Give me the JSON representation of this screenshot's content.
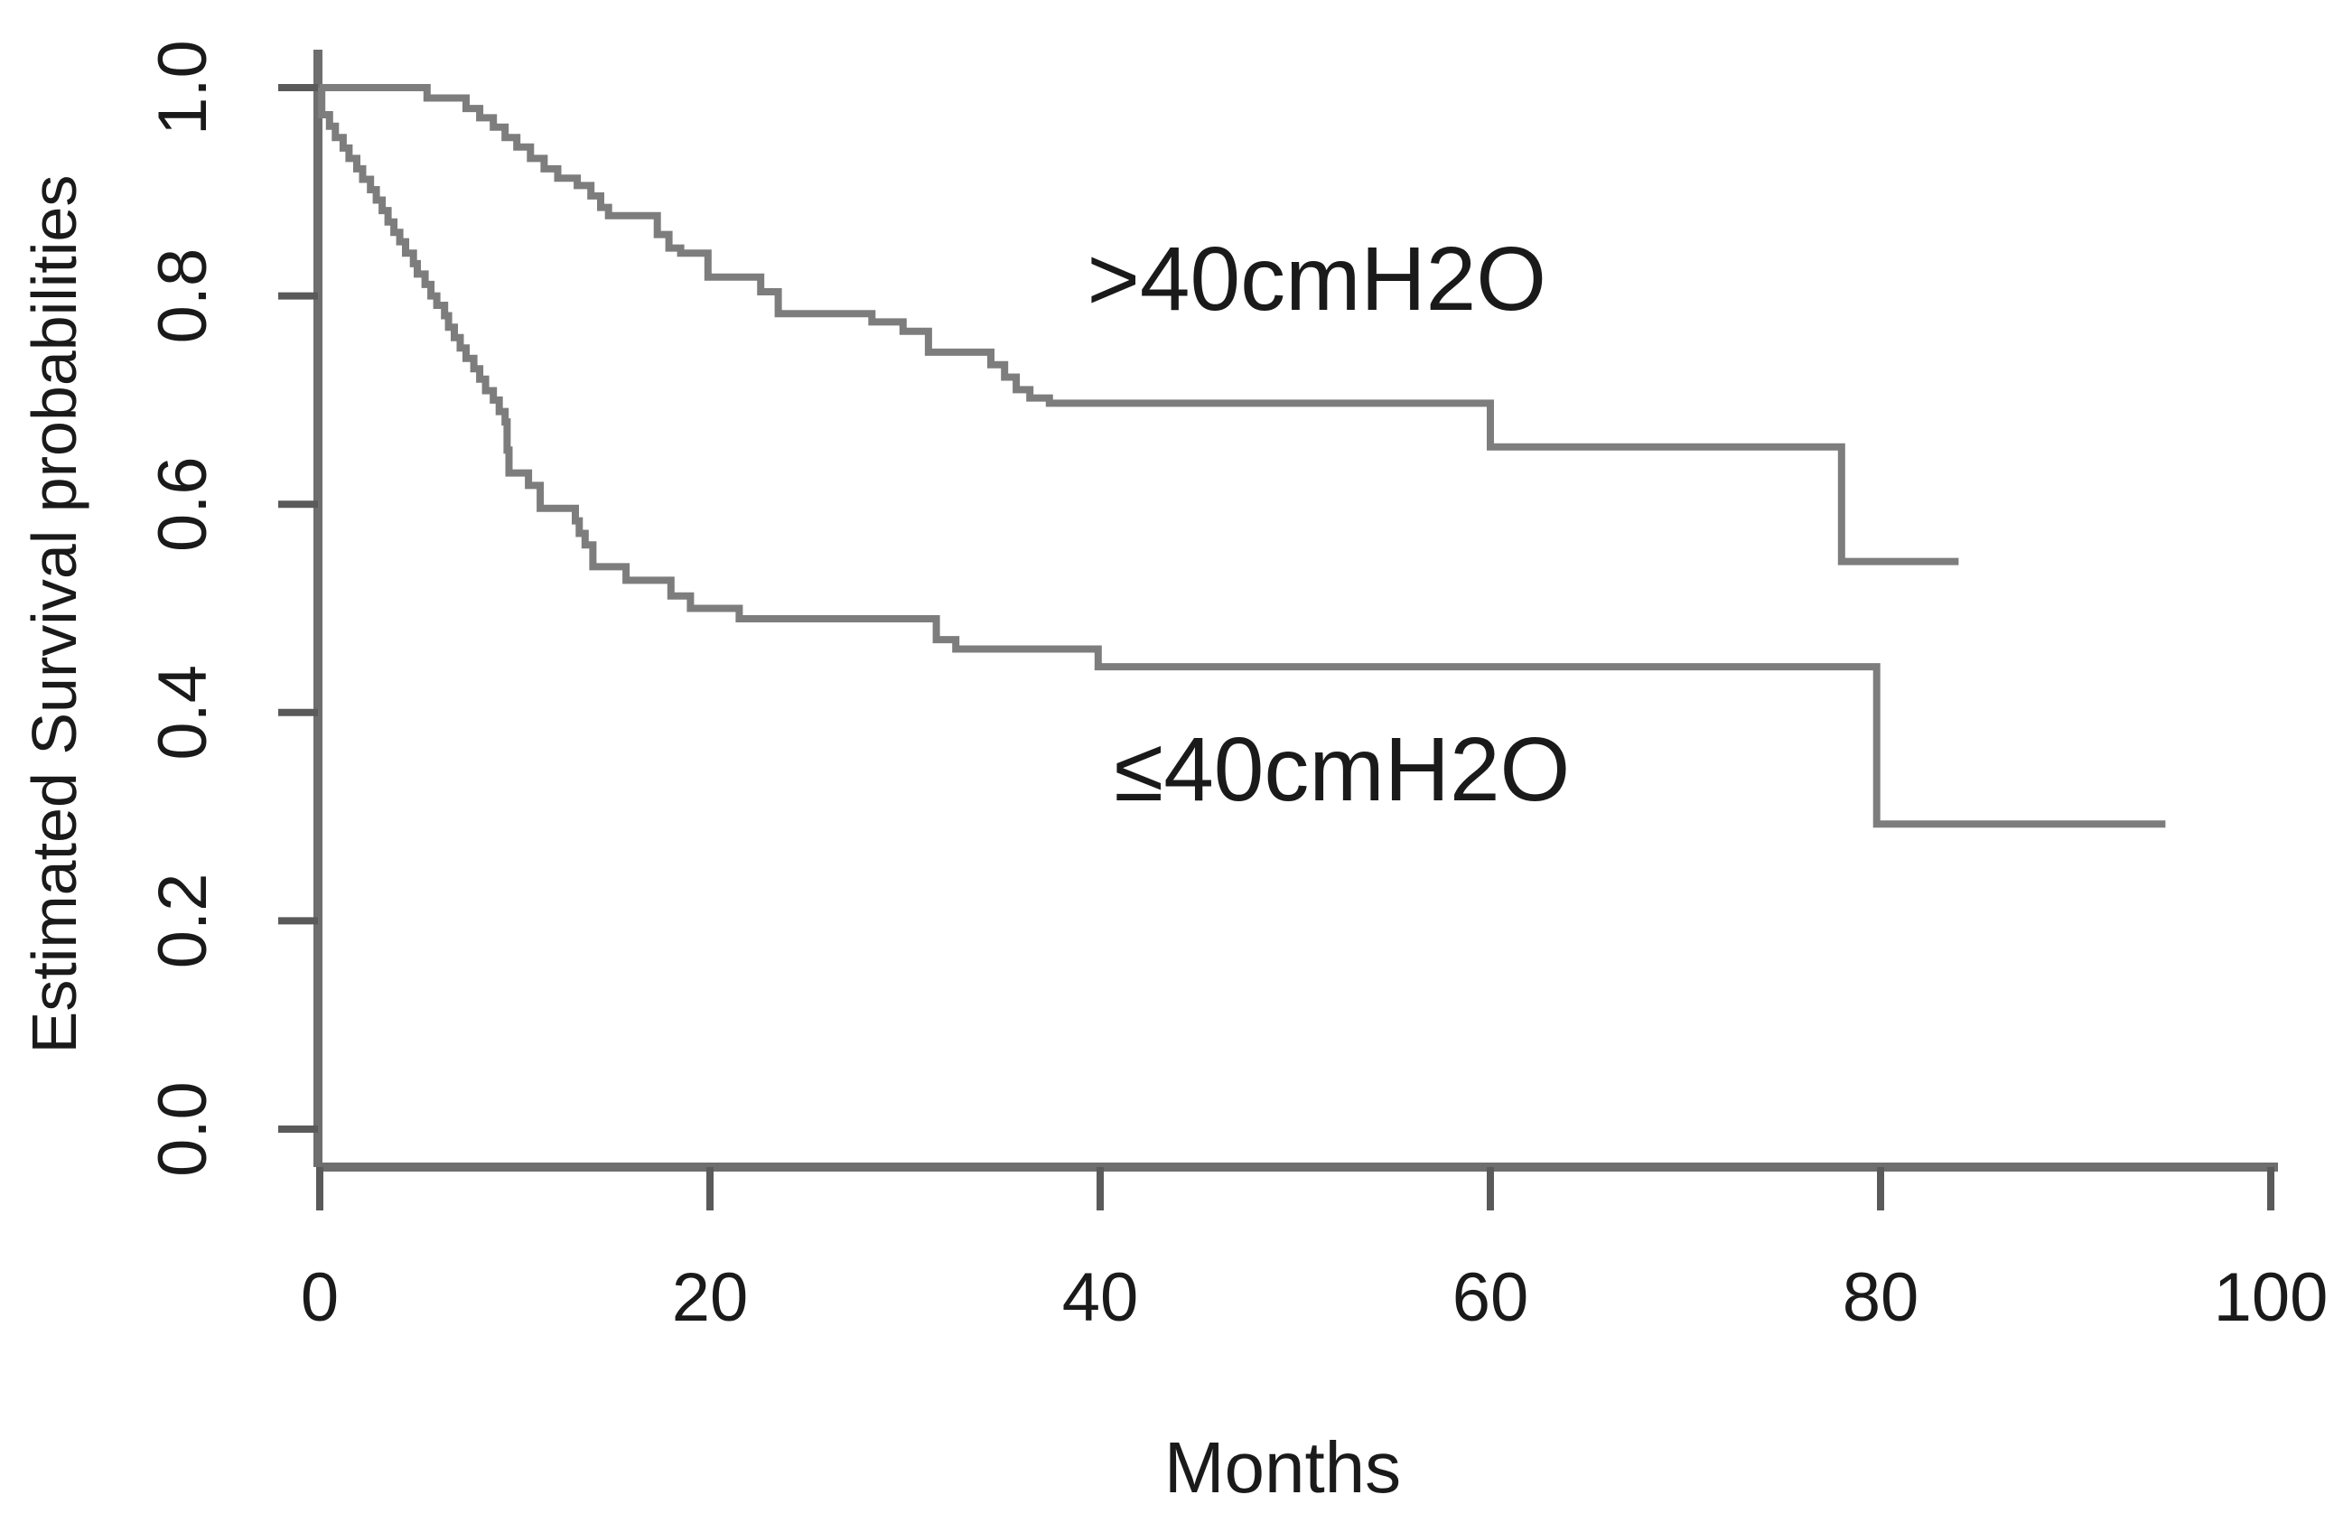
{
  "page": {
    "background": "#ffffff",
    "description": "Kaplan-Meier estimated survival probability curves comparing two groups by pressure threshold"
  },
  "chart_data": {
    "type": "line",
    "subtype": "kaplan-meier-step",
    "title": "",
    "xlabel": "Months",
    "ylabel": "Estimated Survival probabilities",
    "xlim": [
      0,
      100
    ],
    "ylim": [
      0.0,
      1.0
    ],
    "x_ticks": [
      0,
      20,
      40,
      60,
      80,
      100
    ],
    "y_ticks": [
      0.0,
      0.2,
      0.4,
      0.6,
      0.8,
      1.0
    ],
    "y_tick_labels": [
      "0.0",
      "0.2",
      "0.4",
      "0.6",
      "0.8",
      "1.0"
    ],
    "grid": false,
    "legend": "inline-annotations",
    "colors": {
      "curve": "#7d7d7d",
      "axis": "#6e6e6e",
      "tick": "#5a5a5a",
      "text": "#1a1a1a"
    },
    "series": [
      {
        "name": ">40cmH2O",
        "label": ">40cmH2O",
        "label_at": {
          "x": 51.1,
          "y": 0.817
        },
        "end_month": 84,
        "steps": [
          [
            0,
            1.0
          ],
          [
            5.5,
            0.99
          ],
          [
            7.5,
            0.98
          ],
          [
            8.2,
            0.971
          ],
          [
            8.9,
            0.962
          ],
          [
            9.5,
            0.952
          ],
          [
            10.1,
            0.943
          ],
          [
            10.8,
            0.932
          ],
          [
            11.5,
            0.922
          ],
          [
            12.2,
            0.913
          ],
          [
            13.2,
            0.906
          ],
          [
            13.9,
            0.896
          ],
          [
            14.4,
            0.885
          ],
          [
            14.8,
            0.877
          ],
          [
            17.3,
            0.859
          ],
          [
            17.9,
            0.846
          ],
          [
            18.5,
            0.841
          ],
          [
            19.9,
            0.818
          ],
          [
            22.6,
            0.804
          ],
          [
            23.5,
            0.783
          ],
          [
            28.3,
            0.775
          ],
          [
            29.9,
            0.766
          ],
          [
            31.2,
            0.746
          ],
          [
            34.4,
            0.734
          ],
          [
            35.1,
            0.722
          ],
          [
            35.7,
            0.71
          ],
          [
            36.4,
            0.702
          ],
          [
            37.4,
            0.697
          ],
          [
            60,
            0.655
          ],
          [
            78,
            0.545
          ]
        ]
      },
      {
        "name": "≤40cmH2O",
        "label": "≤40cmH2O",
        "label_at": {
          "x": 52.4,
          "y": 0.346
        },
        "end_month": 94.6,
        "steps": [
          [
            0,
            1.0
          ],
          [
            0.1,
            0.974
          ],
          [
            0.5,
            0.963
          ],
          [
            0.8,
            0.952
          ],
          [
            1.2,
            0.942
          ],
          [
            1.5,
            0.932
          ],
          [
            1.9,
            0.922
          ],
          [
            2.2,
            0.912
          ],
          [
            2.6,
            0.902
          ],
          [
            2.9,
            0.892
          ],
          [
            3.2,
            0.882
          ],
          [
            3.5,
            0.871
          ],
          [
            3.8,
            0.861
          ],
          [
            4.1,
            0.852
          ],
          [
            4.4,
            0.841
          ],
          [
            4.8,
            0.831
          ],
          [
            5.0,
            0.821
          ],
          [
            5.4,
            0.811
          ],
          [
            5.7,
            0.8
          ],
          [
            6.0,
            0.791
          ],
          [
            6.4,
            0.781
          ],
          [
            6.6,
            0.77
          ],
          [
            6.9,
            0.76
          ],
          [
            7.2,
            0.75
          ],
          [
            7.5,
            0.74
          ],
          [
            7.9,
            0.73
          ],
          [
            8.2,
            0.72
          ],
          [
            8.5,
            0.709
          ],
          [
            8.9,
            0.7
          ],
          [
            9.2,
            0.689
          ],
          [
            9.5,
            0.679
          ],
          [
            9.6,
            0.652
          ],
          [
            9.7,
            0.63
          ],
          [
            10.7,
            0.618
          ],
          [
            11.3,
            0.596
          ],
          [
            13.1,
            0.584
          ],
          [
            13.3,
            0.572
          ],
          [
            13.6,
            0.561
          ],
          [
            14.0,
            0.54
          ],
          [
            15.7,
            0.527
          ],
          [
            18.0,
            0.512
          ],
          [
            19.0,
            0.5
          ],
          [
            21.5,
            0.49
          ],
          [
            31.6,
            0.47
          ],
          [
            32.6,
            0.461
          ],
          [
            39.9,
            0.444
          ],
          [
            79.8,
            0.293
          ]
        ]
      }
    ]
  }
}
